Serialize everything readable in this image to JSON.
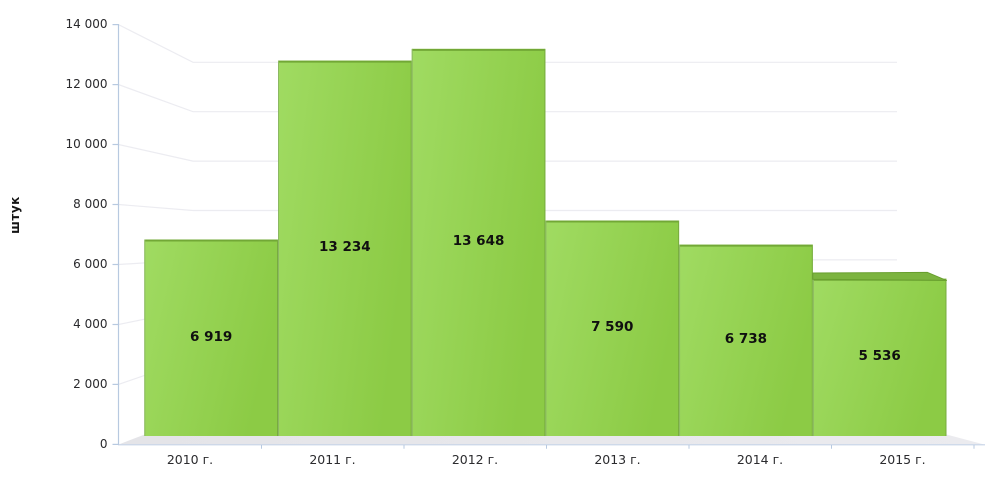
{
  "chart_data": {
    "type": "bar",
    "style": "pseudo-3d-columns",
    "title": "",
    "xlabel": "",
    "ylabel": "штук",
    "categories": [
      "2010 г.",
      "2011 г.",
      "2012 г.",
      "2013 г.",
      "2014 г.",
      "2015 г."
    ],
    "values": [
      6919,
      13234,
      13648,
      7590,
      6738,
      5536
    ],
    "value_labels": [
      "6 919",
      "13 234",
      "13 648",
      "7 590",
      "6 738",
      "5 536"
    ],
    "ylim": [
      0,
      14000
    ],
    "y_ticks": [
      0,
      2000,
      4000,
      6000,
      8000,
      10000,
      12000,
      14000
    ],
    "y_tick_labels": [
      "0",
      "2 000",
      "4 000",
      "6 000",
      "8 000",
      "10 000",
      "12 000",
      "14 000"
    ],
    "grid": true,
    "legend": false,
    "colors": {
      "bar_fill_light": "#a0db62",
      "bar_fill_dark": "#8ccb45",
      "bar_top_edge": "#72a836",
      "bar_left_edge": "#8cb863",
      "bar_right_edge": "#77ab3f",
      "bar_cap": "#7cb43f",
      "bar_cap_edge": "#689f2e",
      "floor_left": "#e4e4e8",
      "floor_right": "#ebebef",
      "axis": "#b7c9e0",
      "front_edge_line": "#c6d4e8",
      "gridline": "#ececf1",
      "label_text": "#101010",
      "tick_text": "#29292c"
    }
  }
}
